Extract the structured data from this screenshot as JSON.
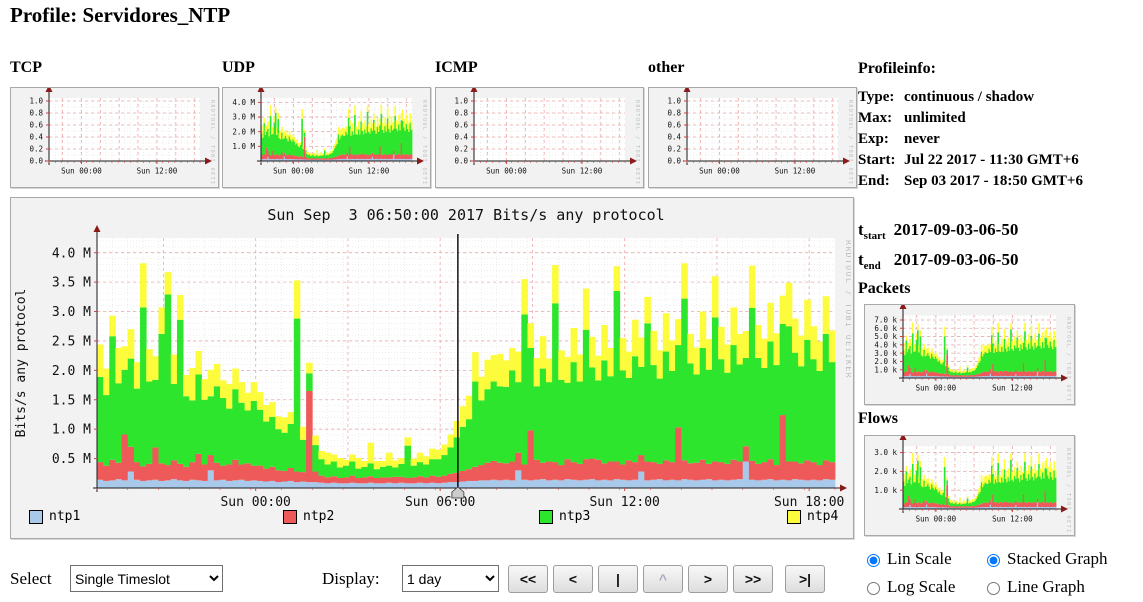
{
  "page_title": "Profile: Servidores_NTP",
  "watermark": "RRDTOOL / TOBI OETIKER",
  "colors": {
    "ntp1": "#a9c9ea",
    "ntp2": "#ee5a5a",
    "ntp3": "#2ee52e",
    "ntp4": "#fcfc3c",
    "grid_major": "#f0a8a8",
    "grid_minor": "#e2e2e2",
    "axis": "#1a1a1a",
    "arrow": "#8b1a1a",
    "tick_mark": "#cc4444",
    "watermark": "#bdbdbd",
    "plot_bg": "#ffffff",
    "box_bg": "#f2f2f2",
    "cursor": "#000000",
    "cursor_handle": "#cccccc"
  },
  "top_charts": [
    {
      "label": "TCP"
    },
    {
      "label": "UDP"
    },
    {
      "label": "ICMP"
    },
    {
      "label": "other"
    }
  ],
  "profileinfo": {
    "heading": "Profileinfo:",
    "rows": [
      {
        "label": "Type:",
        "value": "continuous / shadow"
      },
      {
        "label": "Max:",
        "value": "unlimited"
      },
      {
        "label": "Exp:",
        "value": "never"
      },
      {
        "label": "Start:",
        "value": "Jul 22 2017 - 11:30 GMT+6"
      },
      {
        "label": "End:",
        "value": "Sep 03 2017 - 18:50 GMT+6"
      }
    ]
  },
  "timeslot": {
    "t_start_base": "t",
    "t_start_sub": "start",
    "t_start_value": "2017-09-03-06-50",
    "t_end_base": "t",
    "t_end_sub": "end",
    "t_end_value": "2017-09-03-06-50"
  },
  "sections": {
    "packets_heading": "Packets",
    "flows_heading": "Flows"
  },
  "controls": {
    "select_label": "Select",
    "select_value": "Single Timeslot",
    "display_label": "Display:",
    "display_value": "1 day",
    "buttons": [
      "<<",
      "<",
      "|",
      "^",
      ">",
      ">>",
      ">|"
    ],
    "disabled_button_index": 3,
    "radios": [
      {
        "label": "Lin Scale",
        "group": "scale",
        "checked": true
      },
      {
        "label": "Log Scale",
        "group": "scale",
        "checked": false
      },
      {
        "label": "Stacked Graph",
        "group": "gtype",
        "checked": true
      },
      {
        "label": "Line Graph",
        "group": "gtype",
        "checked": false
      }
    ]
  },
  "chart_data": [
    {
      "id": "tcp",
      "type": "area-stacked",
      "title": "TCP",
      "unit": "bits/s",
      "ylim": [
        0,
        1.05
      ],
      "yticks": [
        [
          1.0,
          "1.0"
        ],
        [
          0.8,
          "0.8"
        ],
        [
          0.6,
          "0.6"
        ],
        [
          0.4,
          "0.4"
        ],
        [
          0.2,
          "0.2"
        ],
        [
          0.0,
          "0.0"
        ]
      ],
      "xticks": [
        [
          0.215,
          "Sun 00:00"
        ],
        [
          0.715,
          "Sun 12:00"
        ]
      ],
      "series": []
    },
    {
      "id": "udp",
      "type": "area-stacked",
      "title": "UDP",
      "unit": "bits/s",
      "ylim": [
        0,
        4.3
      ],
      "yticks": [
        [
          4.0,
          "4.0 M"
        ],
        [
          3.0,
          "3.0 M"
        ],
        [
          2.0,
          "2.0 M"
        ],
        [
          1.0,
          "1.0 M"
        ]
      ],
      "xticks": [
        [
          0.215,
          "Sun 00:00"
        ],
        [
          0.715,
          "Sun 12:00"
        ]
      ],
      "series_ref": "main",
      "scale": 1.0
    },
    {
      "id": "icmp",
      "type": "area-stacked",
      "title": "ICMP",
      "unit": "bits/s",
      "ylim": [
        0,
        1.05
      ],
      "yticks": [
        [
          1.0,
          "1.0"
        ],
        [
          0.8,
          "0.8"
        ],
        [
          0.6,
          "0.6"
        ],
        [
          0.4,
          "0.4"
        ],
        [
          0.2,
          "0.2"
        ],
        [
          0.0,
          "0.0"
        ]
      ],
      "xticks": [
        [
          0.215,
          "Sun 00:00"
        ],
        [
          0.715,
          "Sun 12:00"
        ]
      ],
      "series": []
    },
    {
      "id": "other",
      "type": "area-stacked",
      "title": "other",
      "unit": "bits/s",
      "ylim": [
        0,
        1.05
      ],
      "yticks": [
        [
          1.0,
          "1.0"
        ],
        [
          0.8,
          "0.8"
        ],
        [
          0.6,
          "0.6"
        ],
        [
          0.4,
          "0.4"
        ],
        [
          0.2,
          "0.2"
        ],
        [
          0.0,
          "0.0"
        ]
      ],
      "xticks": [
        [
          0.215,
          "Sun 00:00"
        ],
        [
          0.715,
          "Sun 12:00"
        ]
      ],
      "series": []
    },
    {
      "id": "main",
      "type": "area-stacked",
      "title": "Sun Sep  3 06:50:00 2017 Bits/s any protocol",
      "ylabel": "Bits/s any protocol",
      "unit": "Mbit/s",
      "x_window": "Sat 18:50 - Sun 18:50",
      "cursor_f": 0.489,
      "cursor_time": "Sun Sep 3 06:50:00 2017",
      "ylim": [
        0,
        4.25
      ],
      "yticks": [
        [
          4.0,
          "4.0 M"
        ],
        [
          3.5,
          "3.5 M"
        ],
        [
          3.0,
          "3.0 M"
        ],
        [
          2.5,
          "2.5 M"
        ],
        [
          2.0,
          "2.0 M"
        ],
        [
          1.5,
          "1.5 M"
        ],
        [
          1.0,
          "1.0 M"
        ],
        [
          0.5,
          "0.5 M"
        ]
      ],
      "xticks": [
        [
          0.215,
          "Sun 00:00"
        ],
        [
          0.465,
          "Sun 06:00"
        ],
        [
          0.715,
          "Sun 12:00"
        ],
        [
          0.965,
          "Sun 18:00"
        ]
      ],
      "series": [
        {
          "name": "ntp1",
          "color_key": "ntp1",
          "values": [
            0.14,
            0.12,
            0.13,
            0.15,
            0.13,
            0.28,
            0.14,
            0.12,
            0.13,
            0.14,
            0.12,
            0.13,
            0.15,
            0.13,
            0.12,
            0.14,
            0.13,
            0.12,
            0.3,
            0.13,
            0.14,
            0.12,
            0.13,
            0.14,
            0.12,
            0.13,
            0.12,
            0.11,
            0.12,
            0.1,
            0.11,
            0.12,
            0.1,
            0.11,
            0.1,
            0.1,
            0.09,
            0.08,
            0.09,
            0.08,
            0.08,
            0.09,
            0.08,
            0.08,
            0.09,
            0.08,
            0.08,
            0.09,
            0.08,
            0.09,
            0.08,
            0.08,
            0.09,
            0.08,
            0.09,
            0.08,
            0.09,
            0.1,
            0.1,
            0.11,
            0.12,
            0.12,
            0.13,
            0.13,
            0.14,
            0.13,
            0.14,
            0.13,
            0.3,
            0.14,
            0.13,
            0.14,
            0.15,
            0.13,
            0.14,
            0.13,
            0.15,
            0.14,
            0.13,
            0.14,
            0.15,
            0.13,
            0.14,
            0.13,
            0.15,
            0.14,
            0.13,
            0.14,
            0.28,
            0.13,
            0.14,
            0.15,
            0.13,
            0.14,
            0.13,
            0.15,
            0.14,
            0.13,
            0.14,
            0.15,
            0.13,
            0.14,
            0.13,
            0.14,
            0.15,
            0.45,
            0.14,
            0.13,
            0.14,
            0.15,
            0.13,
            0.14,
            0.13,
            0.15,
            0.14,
            0.13,
            0.14,
            0.13,
            0.15,
            0.14
          ]
        },
        {
          "name": "ntp2",
          "color_key": "ntp2",
          "values": [
            0.3,
            0.26,
            0.35,
            0.28,
            0.78,
            0.42,
            0.3,
            0.25,
            0.28,
            0.55,
            0.3,
            0.26,
            0.32,
            0.28,
            0.24,
            0.3,
            0.45,
            0.28,
            0.26,
            0.3,
            0.24,
            0.28,
            0.35,
            0.26,
            0.3,
            0.25,
            0.26,
            0.22,
            0.24,
            0.2,
            0.18,
            0.22,
            0.18,
            0.16,
            1.55,
            0.18,
            0.12,
            0.1,
            0.11,
            0.09,
            0.1,
            0.12,
            0.09,
            0.1,
            0.11,
            0.09,
            0.1,
            0.09,
            0.11,
            0.1,
            0.09,
            0.1,
            0.11,
            0.1,
            0.12,
            0.11,
            0.12,
            0.14,
            0.16,
            0.18,
            0.2,
            0.24,
            0.26,
            0.3,
            0.32,
            0.3,
            0.28,
            0.32,
            0.3,
            0.26,
            0.85,
            0.34,
            0.28,
            0.32,
            0.3,
            0.26,
            0.34,
            0.3,
            0.28,
            0.35,
            0.35,
            0.35,
            0.28,
            0.32,
            0.3,
            0.26,
            0.34,
            0.3,
            0.28,
            0.32,
            0.3,
            0.26,
            0.34,
            0.3,
            0.9,
            0.32,
            0.28,
            0.3,
            0.34,
            0.26,
            0.32,
            0.3,
            0.28,
            0.34,
            0.3,
            0.26,
            0.32,
            0.28,
            0.3,
            0.34,
            0.26,
            1.1,
            0.32,
            0.3,
            0.28,
            0.34,
            0.3,
            0.26,
            0.32,
            0.3
          ]
        },
        {
          "name": "ntp3",
          "color_key": "ntp3",
          "values": [
            1.45,
            1.2,
            2.1,
            1.35,
            1.1,
            1.5,
            1.25,
            2.7,
            1.4,
            1.15,
            2.2,
            2.9,
            1.3,
            2.45,
            1.2,
            1.05,
            1.35,
            1.1,
            1.0,
            1.3,
            1.15,
            0.95,
            1.2,
            1.05,
            0.9,
            1.1,
            0.95,
            0.8,
            0.85,
            0.7,
            0.65,
            0.75,
            2.6,
            0.55,
            0.3,
            0.45,
            0.28,
            0.22,
            0.25,
            0.18,
            0.2,
            0.24,
            0.16,
            0.18,
            0.22,
            0.15,
            0.18,
            0.2,
            0.16,
            0.22,
            0.55,
            0.2,
            0.24,
            0.22,
            0.28,
            0.3,
            0.35,
            0.45,
            0.6,
            0.75,
            0.85,
            1.45,
            1.1,
            1.25,
            1.35,
            1.3,
            1.3,
            1.55,
            1.2,
            2.55,
            1.4,
            1.25,
            1.6,
            1.35,
            2.7,
            1.45,
            1.3,
            1.7,
            1.4,
            2.2,
            1.55,
            1.35,
            1.75,
            1.45,
            2.9,
            1.6,
            1.4,
            1.8,
            1.5,
            2.35,
            1.65,
            1.45,
            1.85,
            1.55,
            1.4,
            2.75,
            1.7,
            1.5,
            1.9,
            1.6,
            2.45,
            1.75,
            1.55,
            1.95,
            1.65,
            1.5,
            2.6,
            1.8,
            1.6,
            2.0,
            1.7,
            1.55,
            2.3,
            1.85,
            1.65,
            2.05,
            1.75,
            1.6,
            2.15,
            1.7
          ]
        },
        {
          "name": "ntp4",
          "color_key": "ntp4",
          "values": [
            0.55,
            0.45,
            0.35,
            0.6,
            0.4,
            0.5,
            0.45,
            0.75,
            0.55,
            0.4,
            0.45,
            0.38,
            0.5,
            0.42,
            0.36,
            0.55,
            0.4,
            0.35,
            0.45,
            0.38,
            0.3,
            0.42,
            0.35,
            0.35,
            0.3,
            0.32,
            0.3,
            0.28,
            0.25,
            0.22,
            0.26,
            0.2,
            0.65,
            0.22,
            0.18,
            0.16,
            0.14,
            0.2,
            0.12,
            0.16,
            0.1,
            0.12,
            0.18,
            0.1,
            0.35,
            0.14,
            0.1,
            0.22,
            0.12,
            0.1,
            0.14,
            0.12,
            0.16,
            0.14,
            0.18,
            0.16,
            0.18,
            0.22,
            0.28,
            0.35,
            0.4,
            0.5,
            0.4,
            0.5,
            0.45,
            0.55,
            0.45,
            0.38,
            0.52,
            0.6,
            0.42,
            0.48,
            0.55,
            0.4,
            0.65,
            0.5,
            0.44,
            0.58,
            0.46,
            0.7,
            0.52,
            0.42,
            0.6,
            0.48,
            0.42,
            0.55,
            0.45,
            0.62,
            0.5,
            0.45,
            0.58,
            0.48,
            0.65,
            0.52,
            0.44,
            0.6,
            0.5,
            0.46,
            0.62,
            0.52,
            0.7,
            0.55,
            0.48,
            0.64,
            0.52,
            0.46,
            0.72,
            0.56,
            0.5,
            0.66,
            0.54,
            0.48,
            0.74,
            0.58,
            0.52,
            0.68,
            0.56,
            0.5,
            0.64,
            0.54
          ]
        }
      ]
    },
    {
      "id": "packets",
      "type": "area-stacked",
      "title": "Packets",
      "unit": "packets/s",
      "ylim": [
        0,
        7.6
      ],
      "yticks": [
        [
          7.0,
          "7.0 k"
        ],
        [
          6.0,
          "6.0 k"
        ],
        [
          5.0,
          "5.0 k"
        ],
        [
          4.0,
          "4.0 k"
        ],
        [
          3.0,
          "3.0 k"
        ],
        [
          2.0,
          "2.0 k"
        ],
        [
          1.0,
          "1.0 k"
        ]
      ],
      "xticks": [
        [
          0.215,
          "Sun 00:00"
        ],
        [
          0.715,
          "Sun 12:00"
        ]
      ],
      "series_ref": "main",
      "scale": 1.75
    },
    {
      "id": "flows",
      "type": "area-stacked",
      "title": "Flows",
      "unit": "flows/s",
      "ylim": [
        0,
        3.35
      ],
      "yticks": [
        [
          3.0,
          "3.0 k"
        ],
        [
          2.0,
          "2.0 k"
        ],
        [
          1.0,
          "1.0 k"
        ]
      ],
      "xticks": [
        [
          0.215,
          "Sun 00:00"
        ],
        [
          0.715,
          "Sun 12:00"
        ]
      ],
      "series_ref": "main",
      "scale": 0.78
    }
  ]
}
